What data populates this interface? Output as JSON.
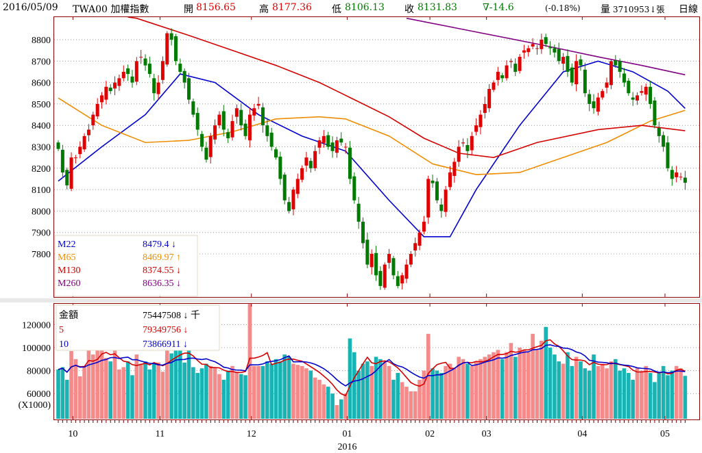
{
  "header": {
    "date": "2016/05/09",
    "symbol": "TWA00 加權指數",
    "open_label": "開",
    "open": "8156.65",
    "high_label": "高",
    "high": "8177.36",
    "low_label": "低",
    "low": "8106.13",
    "close_label": "收",
    "close": "8131.83",
    "change": "∇-14.6",
    "change_pct": "(-0.18%)",
    "volume_label": "量",
    "volume": "3710953↓張",
    "period": "日線"
  },
  "legend_price": [
    {
      "name": "M22",
      "value": "8479.4 ↓",
      "color": "#0000cc"
    },
    {
      "name": "M65",
      "value": "8469.97 ↑",
      "color": "#f08c00"
    },
    {
      "name": "M130",
      "value": "8374.55 ↓",
      "color": "#d40000"
    },
    {
      "name": "M260",
      "value": "8636.35 ↓",
      "color": "#800080"
    }
  ],
  "legend_volume": [
    {
      "name": "金額",
      "value": "75447508 ↓ 千",
      "color": "#000000"
    },
    {
      "name": "5",
      "value": "79349756 ↓",
      "color": "#d40000"
    },
    {
      "name": "10",
      "value": "73866911 ↓",
      "color": "#0000cc"
    }
  ],
  "volume_unit": "(X1000)",
  "year_label": "2016",
  "chart_data": {
    "type": "candlestick",
    "title": "TWA00 加權指數 日線",
    "price_ticks": [
      "8800",
      "8700",
      "8600",
      "8500",
      "8400",
      "8300",
      "8200",
      "8100",
      "8000",
      "7900",
      "7800"
    ],
    "volume_ticks": [
      "120000",
      "100000",
      "80000",
      "60000"
    ],
    "month_labels": [
      {
        "label": "10",
        "index": 4
      },
      {
        "label": "11",
        "index": 24
      },
      {
        "label": "12",
        "index": 45
      },
      {
        "label": "01",
        "index": 67
      },
      {
        "label": "02",
        "index": 86
      },
      {
        "label": "03",
        "index": 99
      },
      {
        "label": "04",
        "index": 121
      },
      {
        "label": "05",
        "index": 140
      }
    ],
    "ylim": [
      7650,
      8920
    ],
    "volume_ylim": [
      38000,
      140000
    ],
    "colors": {
      "up": "#e00000",
      "down": "#007a00",
      "vol_up": "#f58a8a",
      "vol_down": "#1ab3b3"
    },
    "closes": [
      8290,
      8180,
      8120,
      8250,
      8250,
      8300,
      8350,
      8380,
      8450,
      8500,
      8540,
      8580,
      8560,
      8600,
      8620,
      8650,
      8640,
      8600,
      8700,
      8720,
      8680,
      8640,
      8550,
      8600,
      8700,
      8830,
      8800,
      8700,
      8650,
      8600,
      8520,
      8450,
      8380,
      8300,
      8240,
      8350,
      8400,
      8450,
      8380,
      8340,
      8420,
      8480,
      8400,
      8350,
      8450,
      8480,
      8500,
      8400,
      8350,
      8300,
      8250,
      8150,
      8050,
      8000,
      8100,
      8150,
      8200,
      8250,
      8200,
      8280,
      8330,
      8350,
      8300,
      8280,
      8330,
      8320,
      8300,
      8150,
      8050,
      7950,
      7850,
      7750,
      7800,
      7700,
      7650,
      7750,
      7800,
      7700,
      7650,
      7700,
      7750,
      7800,
      7850,
      7900,
      7950,
      8150,
      8130,
      8050,
      8000,
      8100,
      8180,
      8230,
      8300,
      8320,
      8280,
      8350,
      8400,
      8450,
      8500,
      8570,
      8600,
      8650,
      8620,
      8680,
      8700,
      8650,
      8720,
      8750,
      8760,
      8780,
      8760,
      8800,
      8780,
      8760,
      8740,
      8700,
      8720,
      8650,
      8600,
      8700,
      8680,
      8550,
      8500,
      8480,
      8530,
      8560,
      8600,
      8700,
      8680,
      8650,
      8600,
      8550,
      8520,
      8540,
      8560,
      8580,
      8500,
      8400,
      8350,
      8300,
      8200,
      8150,
      8180,
      8160,
      8132
    ],
    "volumes": [
      81000,
      83000,
      72000,
      97000,
      90000,
      75000,
      84000,
      98000,
      94000,
      98000,
      98000,
      91000,
      88000,
      98000,
      81000,
      83000,
      88000,
      76000,
      94000,
      86000,
      88000,
      81000,
      86000,
      87000,
      79000,
      98000,
      95000,
      98000,
      98000,
      87000,
      98000,
      83000,
      78000,
      82000,
      86000,
      84000,
      83000,
      77000,
      72000,
      80000,
      84000,
      79000,
      77000,
      76000,
      138000,
      84000,
      84000,
      84000,
      88000,
      86000,
      90000,
      88000,
      94000,
      92000,
      86000,
      85000,
      84000,
      82000,
      80000,
      74000,
      72000,
      68000,
      66000,
      60000,
      50000,
      55000,
      60000,
      108000,
      96000,
      80000,
      86000,
      88000,
      84000,
      92000,
      90000,
      88000,
      84000,
      72000,
      78000,
      70000,
      66000,
      62000,
      62000,
      72000,
      80000,
      112000,
      82000,
      80000,
      78000,
      84000,
      86000,
      82000,
      92000,
      90000,
      86000,
      84000,
      88000,
      90000,
      92000,
      94000,
      96000,
      98000,
      90000,
      96000,
      104000,
      92000,
      100000,
      98000,
      96000,
      112000,
      98000,
      106000,
      118000,
      100000,
      94000,
      88000,
      86000,
      96000,
      84000,
      92000,
      88000,
      82000,
      80000,
      94000,
      84000,
      86000,
      82000,
      88000,
      90000,
      80000,
      82000,
      78000,
      72000,
      82000,
      80000,
      84000,
      78000,
      70000,
      78000,
      84000,
      76000,
      80000,
      84000,
      82000,
      75448
    ],
    "moving_averages": [
      {
        "name": "M22",
        "color": "#0000cc",
        "points": [
          [
            0,
            8140
          ],
          [
            10,
            8300
          ],
          [
            20,
            8450
          ],
          [
            28,
            8640
          ],
          [
            36,
            8600
          ],
          [
            46,
            8450
          ],
          [
            56,
            8350
          ],
          [
            66,
            8280
          ],
          [
            76,
            8050
          ],
          [
            84,
            7880
          ],
          [
            90,
            7880
          ],
          [
            96,
            8100
          ],
          [
            106,
            8400
          ],
          [
            116,
            8650
          ],
          [
            124,
            8700
          ],
          [
            132,
            8650
          ],
          [
            140,
            8560
          ],
          [
            144,
            8479
          ]
        ]
      },
      {
        "name": "M65",
        "color": "#f08c00",
        "points": [
          [
            0,
            8528
          ],
          [
            10,
            8400
          ],
          [
            20,
            8320
          ],
          [
            30,
            8330
          ],
          [
            40,
            8370
          ],
          [
            50,
            8430
          ],
          [
            60,
            8440
          ],
          [
            66,
            8430
          ],
          [
            76,
            8350
          ],
          [
            86,
            8220
          ],
          [
            96,
            8170
          ],
          [
            106,
            8180
          ],
          [
            116,
            8250
          ],
          [
            126,
            8320
          ],
          [
            136,
            8420
          ],
          [
            144,
            8470
          ]
        ]
      },
      {
        "name": "M130",
        "color": "#d40000",
        "points": [
          [
            16,
            8920
          ],
          [
            18,
            8900
          ],
          [
            30,
            8820
          ],
          [
            40,
            8750
          ],
          [
            50,
            8680
          ],
          [
            60,
            8600
          ],
          [
            68,
            8520
          ],
          [
            76,
            8440
          ],
          [
            84,
            8340
          ],
          [
            92,
            8270
          ],
          [
            100,
            8250
          ],
          [
            110,
            8320
          ],
          [
            124,
            8380
          ],
          [
            134,
            8400
          ],
          [
            144,
            8375
          ]
        ]
      },
      {
        "name": "M260",
        "color": "#800080",
        "points": [
          [
            80,
            8900
          ],
          [
            95,
            8840
          ],
          [
            110,
            8780
          ],
          [
            124,
            8720
          ],
          [
            134,
            8680
          ],
          [
            144,
            8636
          ]
        ]
      }
    ]
  }
}
